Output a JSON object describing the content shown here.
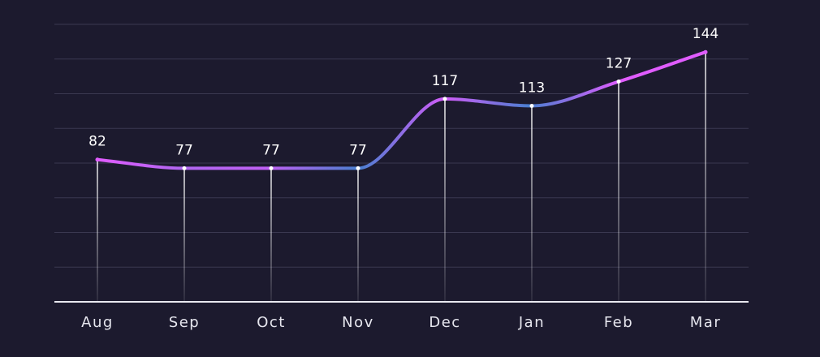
{
  "chart_data": {
    "type": "line",
    "categories": [
      "Aug",
      "Sep",
      "Oct",
      "Nov",
      "Dec",
      "Jan",
      "Feb",
      "Mar"
    ],
    "series": [
      {
        "values": [
          82,
          77,
          77,
          77,
          117,
          113,
          127,
          144
        ]
      }
    ],
    "title": "",
    "xlabel": "",
    "ylabel": "",
    "ylim": [
      0,
      160
    ],
    "grid": true,
    "colors": {
      "background": "#1c1a2e",
      "grid": "#3a3850",
      "line_pink": "#e05cff",
      "line_blue": "#4a7fd0",
      "text": "#e6e6ee"
    }
  }
}
